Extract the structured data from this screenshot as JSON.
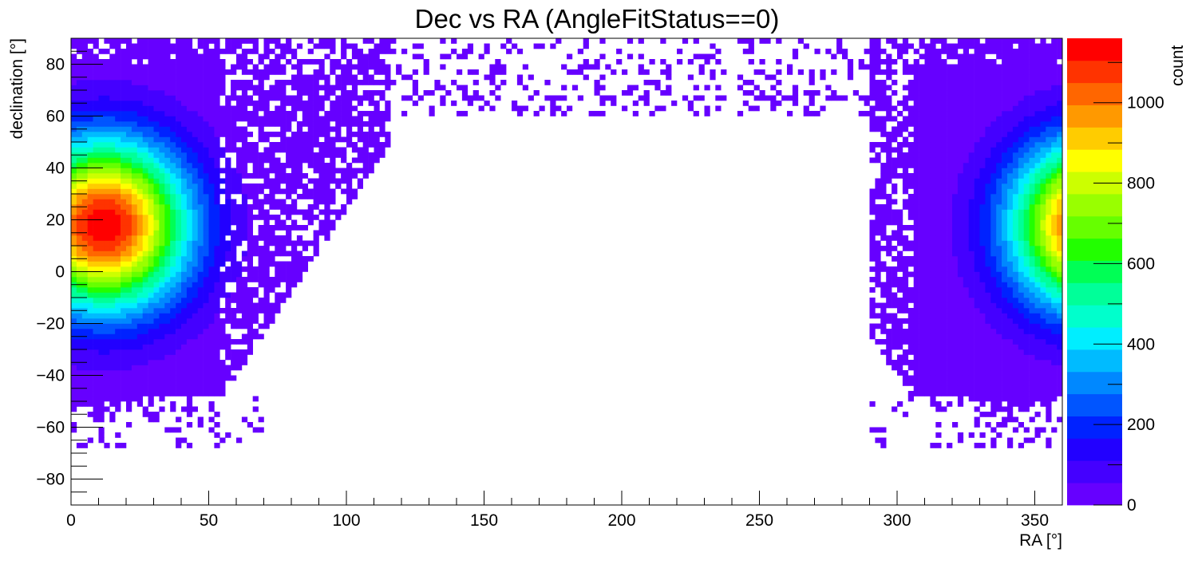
{
  "chart_data": {
    "type": "heatmap",
    "title": "Dec vs RA (AngleFitStatus==0)",
    "xlabel": "RA [°]",
    "ylabel": "declination [°]",
    "zlabel": "count",
    "xlim": [
      0,
      360
    ],
    "ylim": [
      -90,
      90
    ],
    "zlim": [
      0,
      1160
    ],
    "x_ticks": [
      0,
      50,
      100,
      150,
      200,
      250,
      300,
      350
    ],
    "y_ticks": [
      -80,
      -60,
      -40,
      -20,
      0,
      20,
      40,
      60,
      80
    ],
    "z_ticks": [
      0,
      200,
      400,
      600,
      800,
      1000
    ],
    "x_tick_labels": [
      "0",
      "50",
      "100",
      "150",
      "200",
      "250",
      "300",
      "350"
    ],
    "y_tick_labels": [
      "−80",
      "−60",
      "−40",
      "−20",
      "0",
      "20",
      "40",
      "60",
      "80"
    ],
    "z_tick_labels": [
      "0",
      "200",
      "400",
      "600",
      "800",
      "1000"
    ],
    "x_bins": 360,
    "y_bins": 180,
    "grid": false,
    "colorbar": "right",
    "palette": [
      "#6600ff",
      "#4400ff",
      "#2200ff",
      "#0022ff",
      "#0055ff",
      "#0088ff",
      "#00bbff",
      "#00eeff",
      "#00ffcc",
      "#00ff99",
      "#00ff55",
      "#22ff00",
      "#66ff00",
      "#99ff00",
      "#ccff00",
      "#ffff00",
      "#ffcc00",
      "#ff9900",
      "#ff6600",
      "#ff3300",
      "#ff0000"
    ],
    "hotspot": {
      "ra": 12,
      "dec": 18,
      "peak_count": 1160
    },
    "data_extent": {
      "dec_min": -70,
      "dec_max": 90,
      "ra_gap": [
        115,
        290
      ]
    }
  }
}
